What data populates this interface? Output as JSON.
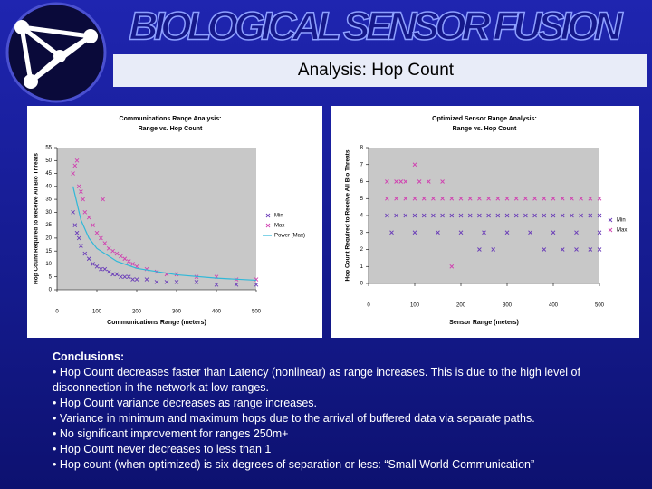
{
  "header": {
    "title": "BIOLOGICAL SENSOR FUSION",
    "subtitle": "Analysis: Hop Count"
  },
  "conclusions": {
    "heading": "Conclusions:",
    "items": [
      "• Hop Count decreases faster than Latency (nonlinear) as range increases.  This is due to the high level of disconnection in the network at low ranges.",
      "• Hop Count variance decreases as range increases.",
      "• Variance in minimum and maximum hops due to the arrival of buffered data via separate paths.",
      "• No significant improvement for ranges 250m+",
      "• Hop Count never decreases to less than 1",
      "• Hop count (when optimized) is six degrees of separation or less: “Small World Communication”"
    ]
  },
  "chart_data": [
    {
      "type": "scatter",
      "title": "Communications Range Analysis:",
      "subtitle": "Range vs. Hop Count",
      "x_label": "Communications Range (meters)",
      "y_label": "Hop Count Required to Receive All Bio Threats",
      "xlim": [
        0,
        500
      ],
      "xticks": [
        0,
        100,
        200,
        300,
        400,
        500
      ],
      "ylim": [
        0,
        55
      ],
      "yticks": [
        0,
        5,
        10,
        15,
        20,
        25,
        30,
        35,
        40,
        45,
        50,
        55
      ],
      "grid": false,
      "series": [
        {
          "name": "Min",
          "color": "#6a3cb8",
          "marker": "x",
          "x": [
            40,
            45,
            50,
            55,
            60,
            70,
            80,
            90,
            100,
            110,
            120,
            130,
            140,
            150,
            160,
            170,
            180,
            190,
            200,
            225,
            250,
            275,
            300,
            350,
            400,
            450,
            500
          ],
          "values": [
            30,
            25,
            22,
            20,
            17,
            14,
            12,
            10,
            9,
            8,
            8,
            7,
            6,
            6,
            5,
            5,
            5,
            4,
            4,
            4,
            3,
            3,
            3,
            3,
            2,
            2,
            2
          ]
        },
        {
          "name": "Max",
          "color": "#d040b0",
          "marker": "x",
          "x": [
            40,
            45,
            50,
            55,
            60,
            65,
            70,
            80,
            90,
            100,
            110,
            115,
            120,
            130,
            140,
            150,
            160,
            170,
            180,
            190,
            200,
            225,
            250,
            275,
            300,
            350,
            400,
            450,
            500
          ],
          "values": [
            45,
            48,
            50,
            40,
            38,
            35,
            30,
            28,
            25,
            22,
            20,
            35,
            18,
            16,
            15,
            14,
            13,
            12,
            11,
            10,
            9,
            8,
            7,
            6,
            6,
            5,
            5,
            4,
            4
          ]
        },
        {
          "name": "Power (Max)",
          "color": "#30b8d8",
          "marker": "line",
          "x": [
            40,
            60,
            80,
            100,
            150,
            200,
            300,
            400,
            500
          ],
          "values": [
            40,
            27,
            20,
            16,
            11,
            8.3,
            5.8,
            4.5,
            3.7
          ]
        }
      ]
    },
    {
      "type": "scatter",
      "title": "Optimized Sensor Range Analysis:",
      "subtitle": "Range vs. Hop Count",
      "x_label": "Sensor Range (meters)",
      "y_label": "Hop Count Required to Receive All Bio Threats",
      "xlim": [
        0,
        500
      ],
      "xticks": [
        0,
        100,
        200,
        300,
        400,
        500
      ],
      "ylim": [
        0,
        8
      ],
      "yticks": [
        0,
        1,
        2,
        3,
        4,
        5,
        6,
        7,
        8
      ],
      "grid": false,
      "series": [
        {
          "name": "Min",
          "color": "#6a3cb8",
          "marker": "x",
          "x": [
            40,
            60,
            80,
            100,
            120,
            140,
            160,
            180,
            200,
            220,
            240,
            260,
            280,
            300,
            320,
            340,
            360,
            380,
            400,
            420,
            440,
            460,
            480,
            500,
            50,
            100,
            150,
            200,
            250,
            300,
            350,
            400,
            450,
            500,
            240,
            270,
            380,
            420,
            450,
            480,
            500
          ],
          "values": [
            4,
            4,
            4,
            4,
            4,
            4,
            4,
            4,
            4,
            4,
            4,
            4,
            4,
            4,
            4,
            4,
            4,
            4,
            4,
            4,
            4,
            4,
            4,
            4,
            3,
            3,
            3,
            3,
            3,
            3,
            3,
            3,
            3,
            3,
            2,
            2,
            2,
            2,
            2,
            2,
            2
          ]
        },
        {
          "name": "Max",
          "color": "#d040b0",
          "marker": "x",
          "x": [
            40,
            60,
            80,
            100,
            120,
            140,
            160,
            180,
            200,
            220,
            240,
            260,
            280,
            300,
            320,
            340,
            360,
            380,
            400,
            420,
            440,
            460,
            480,
            500,
            40,
            60,
            70,
            80,
            110,
            130,
            160,
            100,
            180
          ],
          "values": [
            5,
            5,
            5,
            5,
            5,
            5,
            5,
            5,
            5,
            5,
            5,
            5,
            5,
            5,
            5,
            5,
            5,
            5,
            5,
            5,
            5,
            5,
            5,
            5,
            6,
            6,
            6,
            6,
            6,
            6,
            6,
            7,
            1
          ]
        }
      ]
    }
  ]
}
